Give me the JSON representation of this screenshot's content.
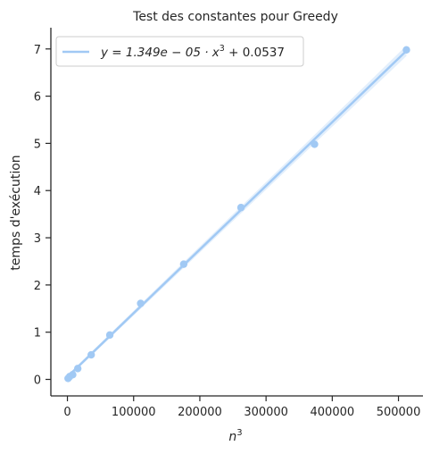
{
  "chart_data": {
    "type": "scatter",
    "title": "Test des constantes pour Greedy",
    "xlabel_base": "n",
    "xlabel_exp": "3",
    "ylabel": "temps d'exécution",
    "xlim": [
      -25000,
      537000
    ],
    "ylim": [
      -0.35,
      7.45
    ],
    "xticks": [
      0,
      100000,
      200000,
      300000,
      400000,
      500000
    ],
    "yticks": [
      0,
      1,
      2,
      3,
      4,
      5,
      6,
      7
    ],
    "grid": false,
    "legend_position": "top-left",
    "colors": {
      "points": "#a1c9f4",
      "line": "#a1c9f4",
      "band": "#a1c9f4",
      "axis": "#262626"
    },
    "legend": {
      "label_prefix": "y = 1.349e − 05 · x",
      "label_exp": "3",
      "label_suffix": " + 0.0537"
    },
    "fit": {
      "slope": 1.349e-05,
      "intercept": 0.0537,
      "x_range": [
        0,
        512000
      ]
    },
    "points": [
      {
        "x": 1000,
        "y": 0.02
      },
      {
        "x": 3375,
        "y": 0.06
      },
      {
        "x": 8000,
        "y": 0.1
      },
      {
        "x": 15625,
        "y": 0.23
      },
      {
        "x": 35937,
        "y": 0.52
      },
      {
        "x": 64000,
        "y": 0.94
      },
      {
        "x": 110592,
        "y": 1.61
      },
      {
        "x": 175616,
        "y": 2.44
      },
      {
        "x": 262144,
        "y": 3.64
      },
      {
        "x": 373248,
        "y": 4.98
      },
      {
        "x": 512000,
        "y": 6.98
      }
    ]
  }
}
